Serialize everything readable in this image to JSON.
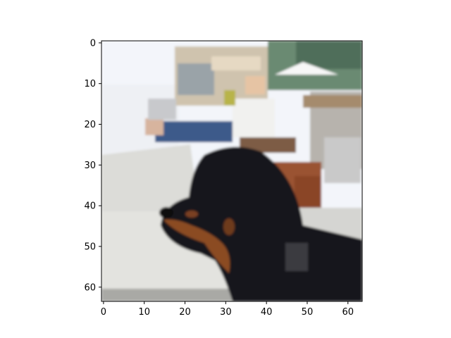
{
  "chart_data": {
    "type": "heatmap",
    "title": "",
    "xlabel": "",
    "ylabel": "",
    "image_size": [
      64,
      64
    ],
    "xlim": [
      -0.5,
      63.5
    ],
    "ylim": [
      63.5,
      -0.5
    ],
    "x_ticks": [
      0,
      10,
      20,
      30,
      40,
      50,
      60
    ],
    "x_tick_labels": [
      "0",
      "10",
      "20",
      "30",
      "40",
      "50",
      "60"
    ],
    "y_ticks": [
      0,
      10,
      20,
      30,
      40,
      50,
      60
    ],
    "y_tick_labels": [
      "0",
      "10",
      "20",
      "30",
      "40",
      "50",
      "60"
    ],
    "grid": false,
    "legend": "none",
    "content": "pixelated photo of a black and tan dog at an outdoor patio with a person seated in a lounge chair",
    "colors": {
      "sky": "#f4f6fb",
      "tiles": "#d9d9d6",
      "wood": "#8a4a2a",
      "dog": "#16161a",
      "tan": "#8a4a20",
      "jeans": "#3c5a88",
      "building": "#cbb89a",
      "trees": "#5b7a64"
    }
  }
}
